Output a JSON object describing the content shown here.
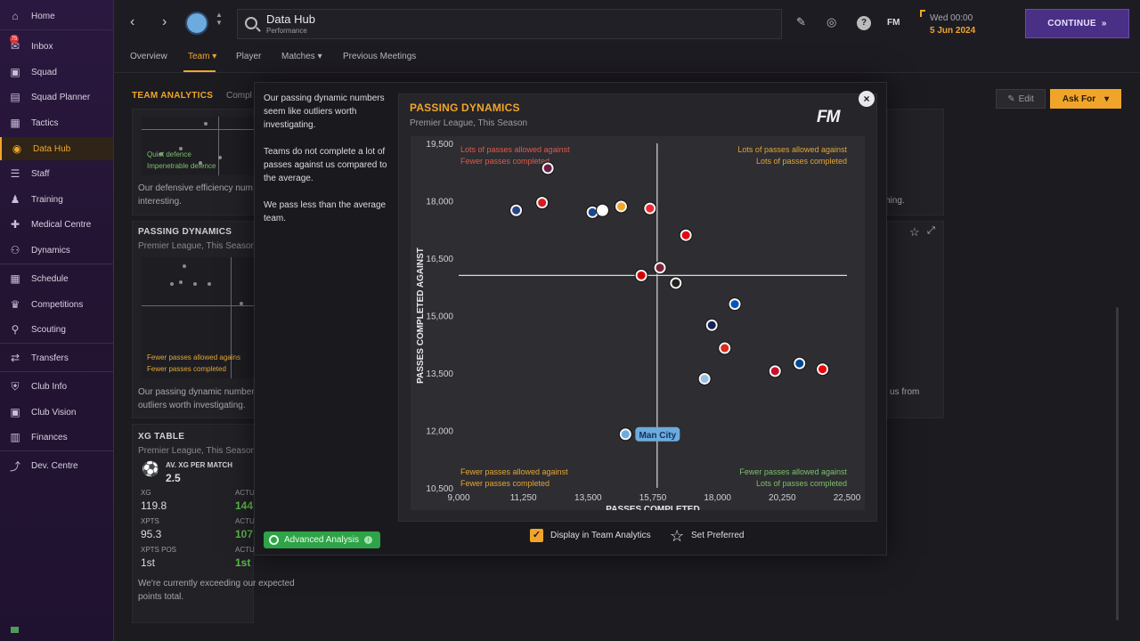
{
  "sidebar": {
    "items": [
      {
        "label": "Home",
        "icon": "home-icon"
      },
      {
        "label": "Inbox",
        "icon": "inbox-icon",
        "badge": "75"
      },
      {
        "label": "Squad",
        "icon": "shirt-icon"
      },
      {
        "label": "Squad Planner",
        "icon": "planner-icon"
      },
      {
        "label": "Tactics",
        "icon": "tactics-icon"
      },
      {
        "label": "Data Hub",
        "icon": "data-hub-icon",
        "active": true
      },
      {
        "label": "Staff",
        "icon": "staff-icon"
      },
      {
        "label": "Training",
        "icon": "training-icon"
      },
      {
        "label": "Medical Centre",
        "icon": "medical-icon"
      },
      {
        "label": "Dynamics",
        "icon": "dynamics-icon"
      },
      {
        "label": "Schedule",
        "icon": "calendar-icon"
      },
      {
        "label": "Competitions",
        "icon": "trophy-icon"
      },
      {
        "label": "Scouting",
        "icon": "scouting-icon"
      },
      {
        "label": "Transfers",
        "icon": "transfers-icon"
      },
      {
        "label": "Club Info",
        "icon": "shield-icon"
      },
      {
        "label": "Club Vision",
        "icon": "vision-icon"
      },
      {
        "label": "Finances",
        "icon": "finances-icon"
      },
      {
        "label": "Dev. Centre",
        "icon": "dev-centre-icon"
      }
    ]
  },
  "topbar": {
    "title": "Data Hub",
    "subtitle": "Performance",
    "date_line1": "Wed 00:00",
    "date_line2": "5 Jun 2024",
    "continue_label": "CONTINUE",
    "fm_label": "FM",
    "help_label": "?"
  },
  "subnav": {
    "tabs": [
      "Overview",
      "Team",
      "Player",
      "Matches",
      "Previous Meetings"
    ],
    "active": "Team"
  },
  "background": {
    "team_analytics_title": "TEAM ANALYTICS",
    "team_analytics_sub": "Compl",
    "quiet_defence": "Quiet defence",
    "impenetrable_defence": "Impenetrable defence",
    "defensive_text_1": "Our defensive efficiency num",
    "defensive_text_2": "interesting.",
    "right_text_1": "ching.",
    "passing_title": "PASSING DYNAMICS",
    "passing_sub": "Premier League, This Season",
    "mini_fewer_allowed": "Fewer passes allowed agains",
    "mini_fewer_completed": "Fewer passes completed",
    "passing_text_1": "Our passing dynamic number",
    "passing_text_2": "outliers worth investigating.",
    "right_text_2": "us from",
    "xg_title": "XG TABLE",
    "xg_sub": "Premier League, This Season",
    "av_xg_label": "AV. XG PER MATCH",
    "av_xg_value": "2.5",
    "xg_label": "XG",
    "xg_value": "119.8",
    "actu_label_1": "ACTU",
    "actu_value_1": "144",
    "xpts_label": "XPTS",
    "xpts_value": "95.3",
    "actu_label_2": "ACTU",
    "actu_value_2": "107",
    "xpts_pos_label": "XPTS POS",
    "xpts_pos_value": "1st",
    "actu_label_3": "ACTU",
    "actu_value_3": "1st",
    "xg_text_1": "We're currently exceeding our expected",
    "xg_text_2": "points total.",
    "edit_label": "Edit",
    "ask_for_label": "Ask For"
  },
  "modal": {
    "insights": [
      "Our passing dynamic numbers seem like outliers worth investigating.",
      "Teams do not complete a lot of passes against us compared to the average.",
      "We pass less than the average team."
    ],
    "advanced_label": "Advanced Analysis",
    "card_title": "PASSING DYNAMICS",
    "card_subtitle": "Premier League, This Season",
    "fm_logo": "FM",
    "display_label": "Display in Team Analytics",
    "display_checked": true,
    "preferred_label": "Set Preferred"
  },
  "chart_data": {
    "type": "scatter",
    "title": "PASSING DYNAMICS",
    "subtitle": "Premier League, This Season",
    "xlabel": "PASSES COMPLETED",
    "ylabel": "PASSES COMPLETED AGAINST",
    "xlim": [
      9000,
      22500
    ],
    "ylim": [
      10500,
      19500
    ],
    "xticks": [
      "9,000",
      "11,250",
      "13,500",
      "15,750",
      "18,000",
      "20,250",
      "22,500"
    ],
    "yticks": [
      "10,500",
      "12,000",
      "13,500",
      "15,000",
      "16,500",
      "18,000",
      "19,500"
    ],
    "x_avg": 15900,
    "y_avg": 16050,
    "quadrant_labels": {
      "top_left": [
        "Lots of passes allowed against",
        "Fewer passes completed"
      ],
      "top_right": [
        "Lots of passes allowed against",
        "Lots of passes completed"
      ],
      "bottom_left": [
        "Fewer passes allowed against",
        "Fewer passes completed"
      ],
      "bottom_right": [
        "Fewer passes allowed against",
        "Lots of passes completed"
      ]
    },
    "quadrant_colors": {
      "top_left": "#e05a4a",
      "top_right": "#e3a632",
      "bottom_left": "#e3a632",
      "bottom_right": "#7cc06a"
    },
    "highlight": {
      "name": "Man City",
      "x": 14800,
      "y": 11900,
      "color": "#6cabdd"
    },
    "points": [
      {
        "x": 11000,
        "y": 17750,
        "color": "#274488"
      },
      {
        "x": 12100,
        "y": 18850,
        "color": "#6c1d45"
      },
      {
        "x": 11900,
        "y": 17950,
        "color": "#d71920"
      },
      {
        "x": 13650,
        "y": 17700,
        "color": "#1b458f"
      },
      {
        "x": 14000,
        "y": 17750,
        "color": "#ffffff"
      },
      {
        "x": 14650,
        "y": 17850,
        "color": "#f5a623"
      },
      {
        "x": 15650,
        "y": 17800,
        "color": "#ee2737"
      },
      {
        "x": 16900,
        "y": 17100,
        "color": "#e30613"
      },
      {
        "x": 15350,
        "y": 16050,
        "color": "#d50000"
      },
      {
        "x": 16000,
        "y": 16250,
        "color": "#7a263a"
      },
      {
        "x": 16550,
        "y": 15850,
        "color": "#241f20"
      },
      {
        "x": 18600,
        "y": 15300,
        "color": "#0057b8"
      },
      {
        "x": 17800,
        "y": 14750,
        "color": "#132257"
      },
      {
        "x": 18250,
        "y": 14150,
        "color": "#da291c"
      },
      {
        "x": 17550,
        "y": 13350,
        "color": "#95bfe5"
      },
      {
        "x": 20000,
        "y": 13550,
        "color": "#c8102e"
      },
      {
        "x": 20850,
        "y": 13750,
        "color": "#034694"
      },
      {
        "x": 21650,
        "y": 13600,
        "color": "#ef0107"
      }
    ]
  }
}
